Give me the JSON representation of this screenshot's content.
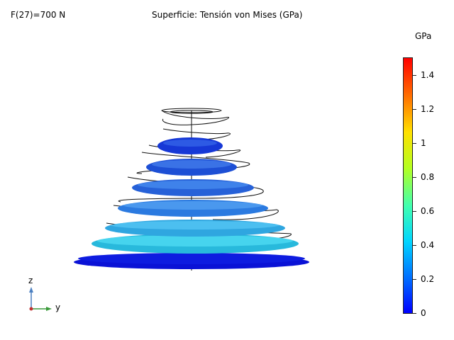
{
  "plot": {
    "parameter_label": "F(27)=700 N",
    "title": "Superficie: Tensión von Mises (GPa)"
  },
  "colorbar": {
    "unit": "GPa",
    "min": 0,
    "max": 1.5,
    "ticks": [
      "1.4",
      "1.2",
      "1",
      "0.8",
      "0.6",
      "0.4",
      "0.2",
      "0"
    ],
    "tick_values": [
      1.4,
      1.2,
      1.0,
      0.8,
      0.6,
      0.4,
      0.2,
      0
    ],
    "colormap": [
      "#0000ff",
      "#0080ff",
      "#00e5ff",
      "#40ff9f",
      "#c0ff00",
      "#ffd000",
      "#ff5000",
      "#ff0000"
    ]
  },
  "axes_triad": {
    "z_label": "z",
    "y_label": "y",
    "z_color": "#4a7fc1",
    "y_color": "#3a9a3a",
    "x_color": "#c03030"
  },
  "model": {
    "coil_count": 8,
    "coil_colors": [
      "#0a14d8",
      "#29b6dd",
      "#3aa0df",
      "#2c7fe0",
      "#2a63d8",
      "#1e4ed4",
      "#1a3cd8",
      "#1020d8"
    ]
  }
}
